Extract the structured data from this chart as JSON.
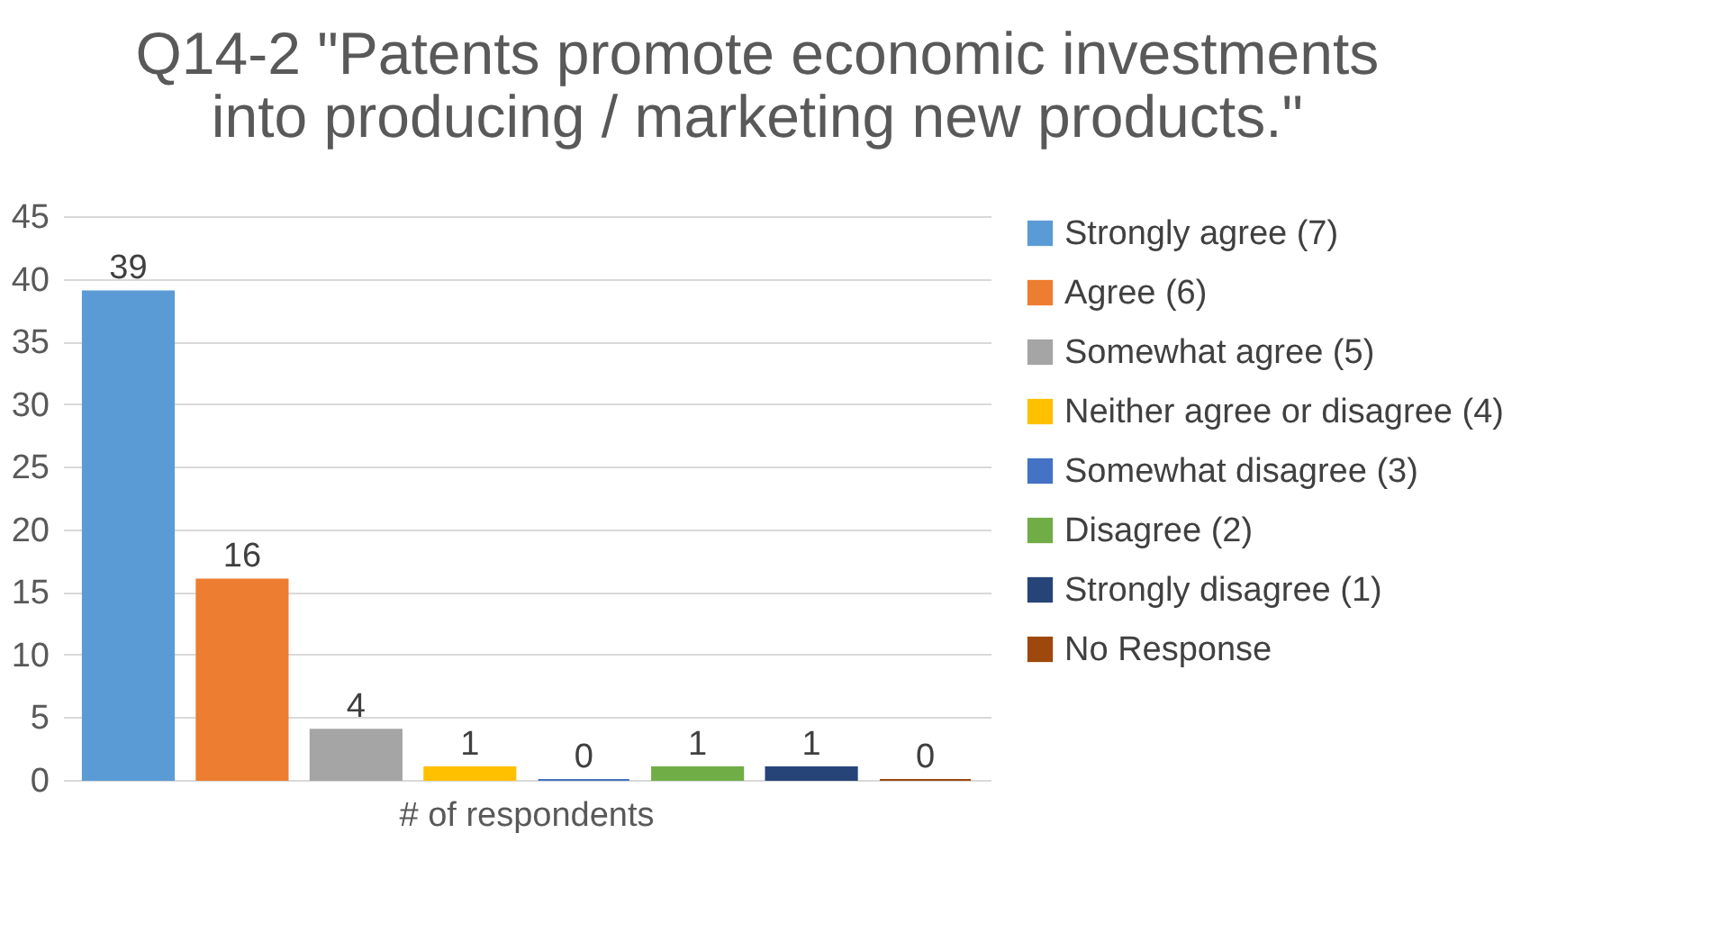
{
  "chart_data": {
    "type": "bar",
    "title": "Q14-2 \"Patents promote economic investments\ninto producing / marketing new products.\"",
    "categories": [
      "# of respondents"
    ],
    "series": [
      {
        "name": "Strongly agree (7)",
        "color": "#5b9bd5",
        "values": [
          39
        ]
      },
      {
        "name": "Agree (6)",
        "color": "#ed7d31",
        "values": [
          16
        ]
      },
      {
        "name": "Somewhat agree (5)",
        "color": "#a5a5a5",
        "values": [
          4
        ]
      },
      {
        "name": "Neither agree or disagree (4)",
        "color": "#ffc000",
        "values": [
          1
        ]
      },
      {
        "name": "Somewhat disagree (3)",
        "color": "#4472c4",
        "values": [
          0
        ]
      },
      {
        "name": "Disagree (2)",
        "color": "#70ad47",
        "values": [
          1
        ]
      },
      {
        "name": "Strongly disagree (1)",
        "color": "#264478",
        "values": [
          1
        ]
      },
      {
        "name": "No Response",
        "color": "#9e480e",
        "values": [
          0
        ]
      }
    ],
    "ylim": [
      0,
      45
    ],
    "yticks": [
      0,
      5,
      10,
      15,
      20,
      25,
      30,
      35,
      40,
      45
    ],
    "grid": "y",
    "legend": "right",
    "data_labels": true
  }
}
